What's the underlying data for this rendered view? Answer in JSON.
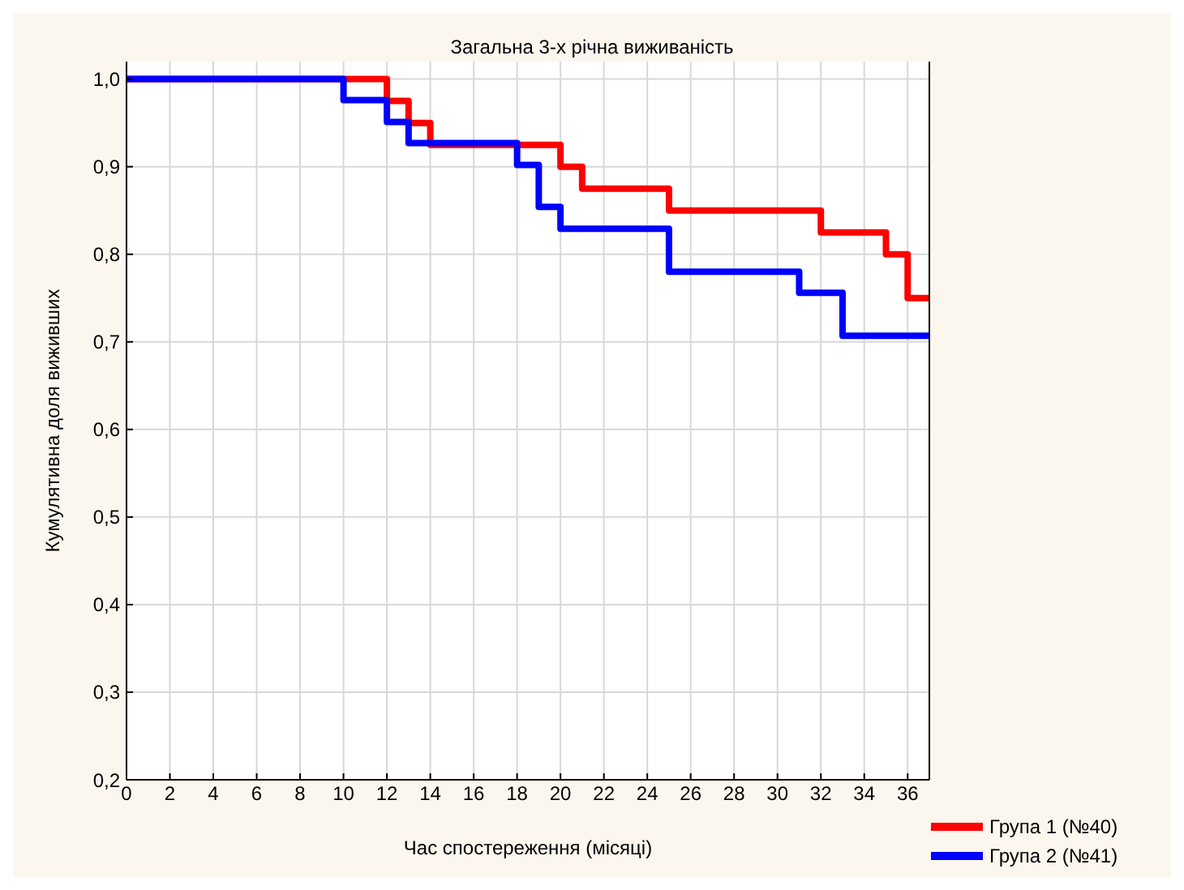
{
  "chart_data": {
    "type": "step",
    "title": "Загальна 3-х річна виживаність",
    "xlabel": "Час спостереження (місяці)",
    "ylabel": "Кумулятивна доля виживших",
    "series": [
      {
        "name": "Група 1 (№40)",
        "color": "#ff0000",
        "x": [
          0,
          12,
          13,
          14,
          20,
          21,
          25,
          32,
          35,
          36,
          37
        ],
        "values": [
          1.0,
          0.975,
          0.95,
          0.925,
          0.9,
          0.875,
          0.85,
          0.825,
          0.8,
          0.75,
          0.75
        ]
      },
      {
        "name": "Група  2 (№41)",
        "color": "#0000ff",
        "x": [
          0,
          10,
          12,
          13,
          18,
          19,
          20,
          25,
          31,
          33,
          37
        ],
        "values": [
          1.0,
          0.976,
          0.951,
          0.927,
          0.902,
          0.854,
          0.829,
          0.78,
          0.756,
          0.707,
          0.707
        ]
      }
    ],
    "xlim": [
      0,
      37
    ],
    "xticks": [
      0,
      2,
      4,
      6,
      8,
      10,
      12,
      14,
      16,
      18,
      20,
      22,
      24,
      26,
      28,
      30,
      32,
      34,
      36
    ],
    "ylim": [
      0.2,
      1.02
    ],
    "yticks": [
      {
        "value": 0.2,
        "label": "0,2"
      },
      {
        "value": 0.3,
        "label": "0,3"
      },
      {
        "value": 0.4,
        "label": "0,4"
      },
      {
        "value": 0.5,
        "label": "0,5"
      },
      {
        "value": 0.6,
        "label": "0,6"
      },
      {
        "value": 0.7,
        "label": "0,7"
      },
      {
        "value": 0.8,
        "label": "0,8"
      },
      {
        "value": 0.9,
        "label": "0,9"
      },
      {
        "value": 1.0,
        "label": "1,0"
      }
    ],
    "grid": true,
    "legend": "bottom right",
    "marker": "none",
    "line_style": "solid"
  }
}
